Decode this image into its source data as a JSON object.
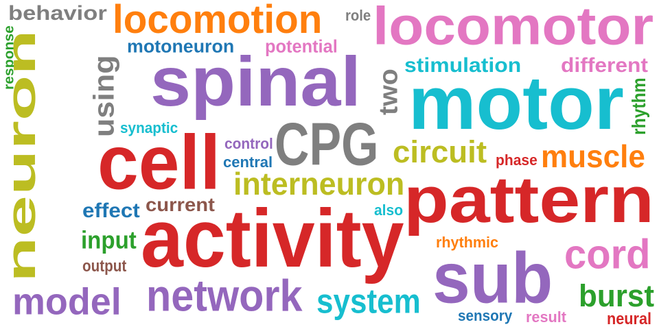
{
  "palette": {
    "gray": "#7f7f7f",
    "orange": "#ff7f0e",
    "blue": "#1f77b4",
    "pink": "#e377c2",
    "purple": "#9467bd",
    "olive": "#bcbd22",
    "cyan": "#17becf",
    "green": "#2ca02c",
    "red": "#d62728",
    "brown": "#8c564b"
  },
  "words": [
    {
      "text": "behavior",
      "color": "gray"
    },
    {
      "text": "locomotion",
      "color": "orange"
    },
    {
      "text": "role",
      "color": "gray"
    },
    {
      "text": "locomotor",
      "color": "pink"
    },
    {
      "text": "motoneuron",
      "color": "blue"
    },
    {
      "text": "potential",
      "color": "pink"
    },
    {
      "text": "response",
      "color": "green",
      "orientation": "vertical"
    },
    {
      "text": "neuron",
      "color": "olive",
      "orientation": "vertical"
    },
    {
      "text": "using",
      "color": "gray",
      "orientation": "vertical"
    },
    {
      "text": "spinal",
      "color": "purple"
    },
    {
      "text": "two",
      "color": "gray",
      "orientation": "vertical"
    },
    {
      "text": "stimulation",
      "color": "cyan"
    },
    {
      "text": "different",
      "color": "pink"
    },
    {
      "text": "motor",
      "color": "cyan"
    },
    {
      "text": "rhythm",
      "color": "green",
      "orientation": "vertical"
    },
    {
      "text": "synaptic",
      "color": "cyan"
    },
    {
      "text": "CPG",
      "color": "gray"
    },
    {
      "text": "control",
      "color": "purple"
    },
    {
      "text": "central",
      "color": "blue"
    },
    {
      "text": "cell",
      "color": "red"
    },
    {
      "text": "circuit",
      "color": "olive"
    },
    {
      "text": "phase",
      "color": "red"
    },
    {
      "text": "muscle",
      "color": "orange"
    },
    {
      "text": "interneuron",
      "color": "olive"
    },
    {
      "text": "pattern",
      "color": "red"
    },
    {
      "text": "current",
      "color": "brown"
    },
    {
      "text": "effect",
      "color": "blue"
    },
    {
      "text": "also",
      "color": "cyan"
    },
    {
      "text": "activity",
      "color": "red"
    },
    {
      "text": "input",
      "color": "green"
    },
    {
      "text": "rhythmic",
      "color": "orange"
    },
    {
      "text": "cord",
      "color": "pink"
    },
    {
      "text": "output",
      "color": "brown"
    },
    {
      "text": "sub",
      "color": "purple"
    },
    {
      "text": "model",
      "color": "purple"
    },
    {
      "text": "network",
      "color": "purple"
    },
    {
      "text": "system",
      "color": "cyan"
    },
    {
      "text": "burst",
      "color": "green"
    },
    {
      "text": "sensory",
      "color": "blue"
    },
    {
      "text": "result",
      "color": "pink"
    },
    {
      "text": "neural",
      "color": "red"
    }
  ]
}
